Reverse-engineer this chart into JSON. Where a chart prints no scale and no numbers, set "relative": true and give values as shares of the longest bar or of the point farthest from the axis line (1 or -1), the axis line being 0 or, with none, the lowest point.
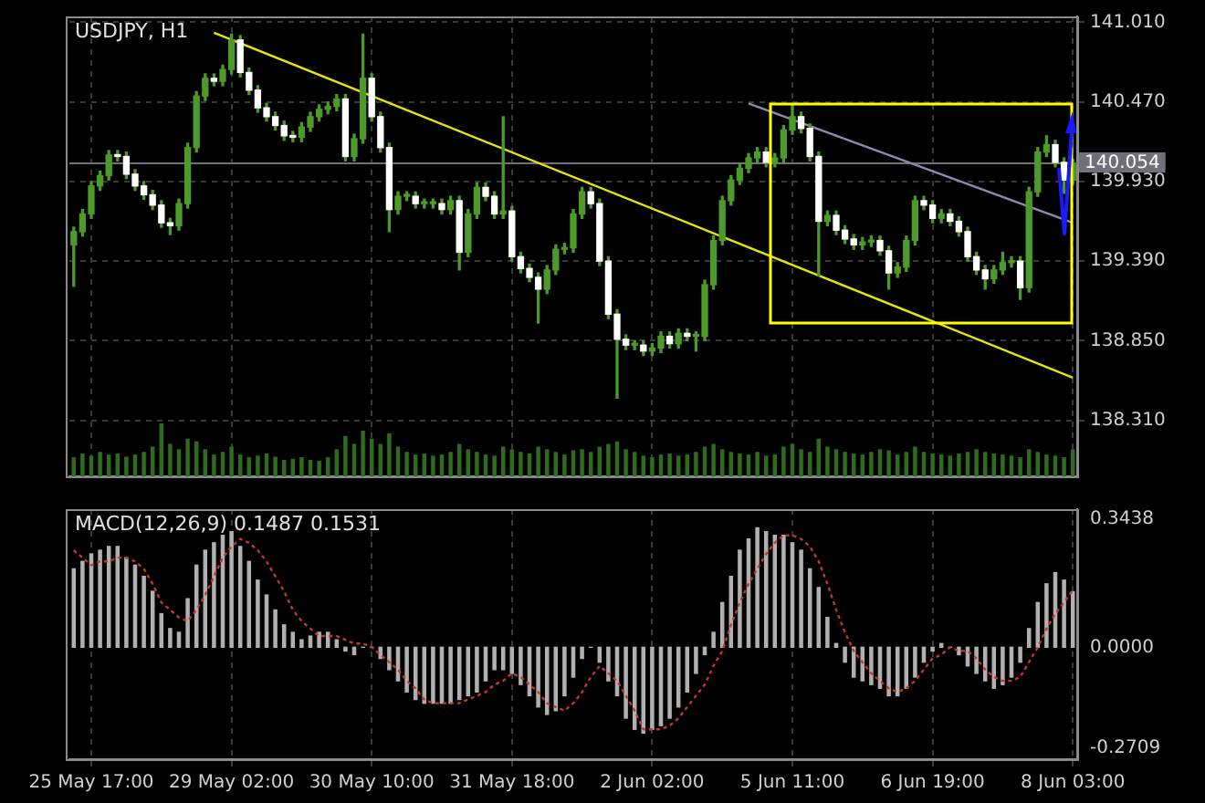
{
  "chart_data": [
    {
      "type": "candlestick",
      "title": "USDJPY, H1",
      "color": "#4c9a2a",
      "colors": [
        "#4c9a2a",
        "#4c9a2a",
        "#4c9a2a",
        "#4c9a2a",
        "#4c9a2a",
        "#ffffff",
        "#ffffff",
        "#ffffff",
        "#ffffff",
        "#ffffff",
        "#ffffff",
        "#ffffff",
        "#4c9a2a",
        "#4c9a2a",
        "#4c9a2a",
        "#4c9a2a",
        "#ffffff",
        "#4c9a2a",
        "#4c9a2a",
        "#ffffff",
        "#ffffff",
        "#ffffff",
        "#ffffff",
        "#ffffff",
        "#ffffff",
        "#ffffff",
        "#4c9a2a",
        "#4c9a2a",
        "#4c9a2a",
        "#4c9a2a",
        "#4c9a2a",
        "#ffffff",
        "#4c9a2a",
        "#4c9a2a",
        "#ffffff",
        "#ffffff",
        "#ffffff",
        "#4c9a2a",
        "#4c9a2a",
        "#ffffff",
        "#4c9a2a",
        "#4c9a2a",
        "#ffffff",
        "#4c9a2a",
        "#ffffff",
        "#4c9a2a",
        "#4c9a2a",
        "#ffffff",
        "#ffffff",
        "#4c9a2a",
        "#ffffff",
        "#ffffff",
        "#ffffff",
        "#ffffff",
        "#4c9a2a",
        "#4c9a2a",
        "#4c9a2a",
        "#4c9a2a",
        "#4c9a2a",
        "#ffffff",
        "#ffffff",
        "#ffffff",
        "#ffffff",
        "#ffffff",
        "#4c9a2a",
        "#ffffff",
        "#4c9a2a",
        "#4c9a2a",
        "#ffffff",
        "#4c9a2a",
        "#ffffff",
        "#4c9a2a",
        "#4c9a2a",
        "#4c9a2a",
        "#4c9a2a",
        "#4c9a2a",
        "#4c9a2a",
        "#4c9a2a",
        "#4c9a2a",
        "#ffffff",
        "#4c9a2a",
        "#4c9a2a",
        "#4c9a2a",
        "#ffffff",
        "#ffffff",
        "#ffffff",
        "#4c9a2a",
        "#ffffff",
        "#ffffff",
        "#ffffff",
        "#4c9a2a",
        "#4c9a2a",
        "#ffffff",
        "#ffffff",
        "#4c9a2a",
        "#4c9a2a",
        "#4c9a2a",
        "#ffffff",
        "#ffffff",
        "#4c9a2a",
        "#ffffff",
        "#ffffff",
        "#ffffff",
        "#ffffff",
        "#ffffff",
        "#4c9a2a",
        "#4c9a2a",
        "#4c9a2a",
        "#ffffff",
        "#4c9a2a",
        "#4c9a2a",
        "#4c9a2a",
        "#ffffff",
        "#ffffff",
        "#4c9a2a"
      ],
      "categories": [
        null,
        null,
        null,
        null,
        null,
        null,
        null,
        null,
        null,
        null,
        null,
        null,
        null,
        null,
        null,
        null,
        null,
        null,
        null,
        null,
        null,
        null,
        null,
        null,
        null,
        null,
        null,
        null,
        null,
        null,
        null,
        null,
        null,
        null,
        null,
        null,
        null,
        null,
        null,
        null,
        null,
        null,
        null,
        null,
        null,
        null,
        null,
        null,
        null,
        null,
        null,
        null,
        null,
        null,
        null,
        null,
        null,
        null,
        null,
        null,
        null,
        null,
        null,
        null,
        null,
        null,
        null,
        null,
        null,
        null,
        null,
        null,
        null,
        null,
        null,
        null,
        null,
        null,
        null,
        null,
        null,
        null,
        null,
        null,
        null,
        null,
        null,
        null,
        null,
        null,
        null,
        null,
        null,
        null,
        null,
        null,
        null,
        null,
        null,
        null,
        null,
        null,
        null,
        null,
        null,
        null,
        null,
        null,
        null,
        null,
        null,
        null,
        null,
        null,
        null
      ],
      "ohlc": [
        [
          139.5,
          139.62,
          139.22,
          139.59
        ],
        [
          139.59,
          139.74,
          139.56,
          139.71
        ],
        [
          139.71,
          139.93,
          139.68,
          139.9
        ],
        [
          139.9,
          140.0,
          139.87,
          139.97
        ],
        [
          139.97,
          140.14,
          139.94,
          140.11
        ],
        [
          140.11,
          140.14,
          140.07,
          140.1
        ],
        [
          140.1,
          140.13,
          139.95,
          139.98
        ],
        [
          139.98,
          140.01,
          139.87,
          139.9
        ],
        [
          139.9,
          139.93,
          139.81,
          139.84
        ],
        [
          139.84,
          139.87,
          139.74,
          139.77
        ],
        [
          139.77,
          139.8,
          139.62,
          139.65
        ],
        [
          139.65,
          139.68,
          139.57,
          139.63
        ],
        [
          139.63,
          139.81,
          139.6,
          139.78
        ],
        [
          139.78,
          140.19,
          139.75,
          140.16
        ],
        [
          140.16,
          140.54,
          140.13,
          140.51
        ],
        [
          140.51,
          140.66,
          140.48,
          140.63
        ],
        [
          140.63,
          140.66,
          140.58,
          140.61
        ],
        [
          140.61,
          140.72,
          140.58,
          140.69
        ],
        [
          140.69,
          140.93,
          140.66,
          140.89
        ],
        [
          140.89,
          140.92,
          140.64,
          140.67
        ],
        [
          140.67,
          140.7,
          140.52,
          140.55
        ],
        [
          140.55,
          140.58,
          140.4,
          140.43
        ],
        [
          140.43,
          140.46,
          140.34,
          140.37
        ],
        [
          140.37,
          140.4,
          140.28,
          140.31
        ],
        [
          140.31,
          140.34,
          140.21,
          140.24
        ],
        [
          140.24,
          140.27,
          140.2,
          140.23
        ],
        [
          140.23,
          140.33,
          140.2,
          140.3
        ],
        [
          140.3,
          140.4,
          140.27,
          140.37
        ],
        [
          140.37,
          140.45,
          140.34,
          140.42
        ],
        [
          140.42,
          140.47,
          140.39,
          140.44
        ],
        [
          140.44,
          140.52,
          140.41,
          140.49
        ],
        [
          140.49,
          140.52,
          140.07,
          140.1
        ],
        [
          140.1,
          140.25,
          140.07,
          140.22
        ],
        [
          140.22,
          140.93,
          140.19,
          140.63
        ],
        [
          140.63,
          140.66,
          140.34,
          140.37
        ],
        [
          140.37,
          140.4,
          140.13,
          140.16
        ],
        [
          140.16,
          140.19,
          139.59,
          139.74
        ],
        [
          139.74,
          139.86,
          139.71,
          139.83
        ],
        [
          139.83,
          139.86,
          139.8,
          139.83
        ],
        [
          139.83,
          139.86,
          139.75,
          139.78
        ],
        [
          139.78,
          139.81,
          139.75,
          139.78
        ],
        [
          139.78,
          139.81,
          139.75,
          139.78
        ],
        [
          139.78,
          139.81,
          139.71,
          139.74
        ],
        [
          139.74,
          139.83,
          139.71,
          139.8
        ],
        [
          139.8,
          139.83,
          139.33,
          139.45
        ],
        [
          139.45,
          139.74,
          139.42,
          139.71
        ],
        [
          139.71,
          139.92,
          139.68,
          139.89
        ],
        [
          139.89,
          139.92,
          139.8,
          139.83
        ],
        [
          139.83,
          139.86,
          139.68,
          139.71
        ],
        [
          139.71,
          140.37,
          139.68,
          139.73
        ],
        [
          139.73,
          139.76,
          139.39,
          139.42
        ],
        [
          139.42,
          139.45,
          139.31,
          139.34
        ],
        [
          139.34,
          139.37,
          139.25,
          139.28
        ],
        [
          139.28,
          139.31,
          138.97,
          139.2
        ],
        [
          139.2,
          139.36,
          139.17,
          139.33
        ],
        [
          139.33,
          139.5,
          139.3,
          139.47
        ],
        [
          139.47,
          139.51,
          139.44,
          139.48
        ],
        [
          139.48,
          139.74,
          139.45,
          139.71
        ],
        [
          139.71,
          139.89,
          139.68,
          139.86
        ],
        [
          139.86,
          139.89,
          139.75,
          139.78
        ],
        [
          139.78,
          139.81,
          139.36,
          139.39
        ],
        [
          139.39,
          139.42,
          139.0,
          139.03
        ],
        [
          139.03,
          139.06,
          138.46,
          138.86
        ],
        [
          138.86,
          138.89,
          138.79,
          138.82
        ],
        [
          138.82,
          138.85,
          138.79,
          138.82
        ],
        [
          138.82,
          138.85,
          138.75,
          138.78
        ],
        [
          138.78,
          138.83,
          138.75,
          138.8
        ],
        [
          138.8,
          138.91,
          138.77,
          138.88
        ],
        [
          138.88,
          138.91,
          138.8,
          138.83
        ],
        [
          138.83,
          138.93,
          138.8,
          138.9
        ],
        [
          138.9,
          138.93,
          138.85,
          138.88
        ],
        [
          138.88,
          138.91,
          138.78,
          138.88
        ],
        [
          138.88,
          139.26,
          138.85,
          139.23
        ],
        [
          139.23,
          139.56,
          139.2,
          139.53
        ],
        [
          139.53,
          139.83,
          139.5,
          139.8
        ],
        [
          139.8,
          139.97,
          139.77,
          139.94
        ],
        [
          139.94,
          140.05,
          139.91,
          140.02
        ],
        [
          140.02,
          140.12,
          139.99,
          140.09
        ],
        [
          140.09,
          140.16,
          140.06,
          140.13
        ],
        [
          140.13,
          140.16,
          140.03,
          140.06
        ],
        [
          140.06,
          140.12,
          140.03,
          140.09
        ],
        [
          140.09,
          140.31,
          140.06,
          140.28
        ],
        [
          140.28,
          140.45,
          140.25,
          140.37
        ],
        [
          140.37,
          140.4,
          140.26,
          140.29
        ],
        [
          140.29,
          140.32,
          140.07,
          140.1
        ],
        [
          140.1,
          140.13,
          139.29,
          139.66
        ],
        [
          139.66,
          139.73,
          139.63,
          139.7
        ],
        [
          139.7,
          139.73,
          139.57,
          139.6
        ],
        [
          139.6,
          139.63,
          139.51,
          139.54
        ],
        [
          139.54,
          139.57,
          139.47,
          139.5
        ],
        [
          139.5,
          139.55,
          139.47,
          139.52
        ],
        [
          139.52,
          139.56,
          139.49,
          139.53
        ],
        [
          139.53,
          139.56,
          139.43,
          139.46
        ],
        [
          139.46,
          139.49,
          139.2,
          139.31
        ],
        [
          139.31,
          139.38,
          139.28,
          139.35
        ],
        [
          139.35,
          139.56,
          139.32,
          139.53
        ],
        [
          139.53,
          139.83,
          139.5,
          139.8
        ],
        [
          139.8,
          139.83,
          139.74,
          139.77
        ],
        [
          139.77,
          139.8,
          139.65,
          139.68
        ],
        [
          139.68,
          139.74,
          139.65,
          139.71
        ],
        [
          139.71,
          139.74,
          139.63,
          139.66
        ],
        [
          139.66,
          139.69,
          139.56,
          139.59
        ],
        [
          139.59,
          139.62,
          139.39,
          139.42
        ],
        [
          139.42,
          139.45,
          139.3,
          139.33
        ],
        [
          139.33,
          139.36,
          139.2,
          139.27
        ],
        [
          139.27,
          139.36,
          139.24,
          139.33
        ],
        [
          139.33,
          139.45,
          139.3,
          139.38
        ],
        [
          139.38,
          139.42,
          139.35,
          139.39
        ],
        [
          139.39,
          139.42,
          139.13,
          139.21
        ],
        [
          139.21,
          139.89,
          139.18,
          139.86
        ],
        [
          139.86,
          140.16,
          139.83,
          140.13
        ],
        [
          140.13,
          140.24,
          140.1,
          140.18
        ],
        [
          140.18,
          140.21,
          140.03,
          140.06
        ],
        [
          140.06,
          140.09,
          139.85,
          139.94
        ],
        [
          139.94,
          140.08,
          139.91,
          140.05
        ]
      ],
      "series": [
        {
          "type": "line",
          "color": "#e6e600",
          "values": [
            null,
            null,
            null,
            null,
            null,
            null,
            null,
            null,
            null,
            null,
            null,
            null,
            null,
            null,
            null,
            null,
            140.94,
            null,
            null,
            null,
            null,
            null,
            null,
            null,
            null,
            null,
            null,
            null,
            null,
            null,
            null,
            null,
            null,
            null,
            null,
            null,
            null,
            null,
            null,
            null,
            null,
            null,
            null,
            null,
            null,
            null,
            null,
            null,
            null,
            null,
            null,
            null,
            null,
            null,
            null,
            null,
            null,
            null,
            null,
            null,
            null,
            null,
            null,
            null,
            null,
            null,
            null,
            null,
            null,
            null,
            null,
            null,
            null,
            null,
            null,
            null,
            null,
            null,
            null,
            null,
            null,
            null,
            null,
            null,
            null,
            null,
            null,
            null,
            null,
            null,
            null,
            null,
            null,
            null,
            null,
            null,
            null,
            null,
            null,
            null,
            null,
            null,
            null,
            null,
            null,
            null,
            null,
            null,
            null,
            null,
            null,
            null,
            null,
            null,
            138.6
          ]
        },
        {
          "type": "line",
          "color": "#8c8cb0",
          "values": [
            null,
            null,
            null,
            null,
            null,
            null,
            null,
            null,
            null,
            null,
            null,
            null,
            null,
            null,
            null,
            null,
            null,
            null,
            null,
            null,
            null,
            null,
            null,
            null,
            null,
            null,
            null,
            null,
            null,
            null,
            null,
            null,
            null,
            null,
            null,
            null,
            null,
            null,
            null,
            null,
            null,
            null,
            null,
            null,
            null,
            null,
            null,
            null,
            null,
            null,
            null,
            null,
            null,
            null,
            null,
            null,
            null,
            null,
            null,
            null,
            null,
            null,
            null,
            null,
            null,
            null,
            null,
            null,
            null,
            null,
            null,
            null,
            null,
            null,
            null,
            null,
            null,
            140.46,
            null,
            null,
            null,
            null,
            null,
            null,
            null,
            null,
            null,
            null,
            null,
            null,
            null,
            null,
            null,
            null,
            null,
            null,
            null,
            null,
            null,
            null,
            null,
            null,
            null,
            null,
            null,
            null,
            null,
            null,
            null,
            null,
            null,
            null,
            null,
            null,
            139.65
          ]
        }
      ],
      "ylim": [
        137.93,
        141.05
      ],
      "yticks": [
        {
          "value": 138.31,
          "label": "138.310"
        },
        {
          "value": 138.85,
          "label": "138.850"
        },
        {
          "value": 139.39,
          "label": "139.390"
        },
        {
          "value": 139.93,
          "label": "139.930"
        },
        {
          "value": 140.47,
          "label": "140.470"
        },
        {
          "value": 141.01,
          "label": "141.010"
        }
      ],
      "ref_lines": [
        {
          "axis": "y",
          "value": 140.054,
          "label": "140.054",
          "color": "#70707a"
        }
      ],
      "grid": true,
      "tick_labels": "y",
      "legend": false
    },
    {
      "type": "bar",
      "relative": true,
      "color": "#2f6b1f",
      "categories": [
        null,
        null,
        null,
        null,
        null,
        null,
        null,
        null,
        null,
        null,
        null,
        null,
        null,
        null,
        null,
        null,
        null,
        null,
        null,
        null,
        null,
        null,
        null,
        null,
        null,
        null,
        null,
        null,
        null,
        null,
        null,
        null,
        null,
        null,
        null,
        null,
        null,
        null,
        null,
        null,
        null,
        null,
        null,
        null,
        null,
        null,
        null,
        null,
        null,
        null,
        null,
        null,
        null,
        null,
        null,
        null,
        null,
        null,
        null,
        null,
        null,
        null,
        null,
        null,
        null,
        null,
        null,
        null,
        null,
        null,
        null,
        null,
        null,
        null,
        null,
        null,
        null,
        null,
        null,
        null,
        null,
        null,
        null,
        null,
        null,
        null,
        null,
        null,
        null,
        null,
        null,
        null,
        null,
        null,
        null,
        null,
        null,
        null,
        null,
        null,
        null,
        null,
        null,
        null,
        null,
        null,
        null,
        null,
        null,
        null,
        null,
        null,
        null,
        null,
        null
      ],
      "values": [
        0.35,
        0.42,
        0.38,
        0.45,
        0.4,
        0.42,
        0.36,
        0.4,
        0.45,
        0.55,
        1,
        0.6,
        0.5,
        0.7,
        0.65,
        0.5,
        0.4,
        0.45,
        0.55,
        0.4,
        0.35,
        0.38,
        0.42,
        0.36,
        0.3,
        0.32,
        0.35,
        0.3,
        0.28,
        0.35,
        0.5,
        0.75,
        0.6,
        0.85,
        0.7,
        0.6,
        0.8,
        0.55,
        0.45,
        0.4,
        0.42,
        0.38,
        0.4,
        0.45,
        0.6,
        0.5,
        0.45,
        0.4,
        0.38,
        0.55,
        0.5,
        0.45,
        0.42,
        0.55,
        0.5,
        0.45,
        0.4,
        0.48,
        0.5,
        0.45,
        0.55,
        0.6,
        0.65,
        0.5,
        0.45,
        0.38,
        0.35,
        0.4,
        0.42,
        0.38,
        0.4,
        0.45,
        0.55,
        0.6,
        0.5,
        0.45,
        0.42,
        0.4,
        0.45,
        0.38,
        0.4,
        0.55,
        0.6,
        0.5,
        0.45,
        0.7,
        0.55,
        0.5,
        0.45,
        0.42,
        0.4,
        0.45,
        0.5,
        0.48,
        0.4,
        0.45,
        0.55,
        0.45,
        0.42,
        0.4,
        0.38,
        0.42,
        0.45,
        0.5,
        0.45,
        0.42,
        0.4,
        0.38,
        0.35,
        0.5,
        0.45,
        0.4,
        0.38,
        0.35,
        0.5
      ],
      "tick_labels": false,
      "legend": false
    },
    {
      "type": "bar",
      "title": "MACD(12,26,9) 0.1487 0.1531",
      "categories": [
        null,
        null,
        "25 May 17:00",
        null,
        null,
        null,
        null,
        null,
        null,
        null,
        null,
        null,
        null,
        null,
        null,
        null,
        null,
        null,
        "29 May 02:00",
        null,
        null,
        null,
        null,
        null,
        null,
        null,
        null,
        null,
        null,
        null,
        null,
        null,
        null,
        null,
        "30 May 10:00",
        null,
        null,
        null,
        null,
        null,
        null,
        null,
        null,
        null,
        null,
        null,
        null,
        null,
        null,
        null,
        "31 May 18:00",
        null,
        null,
        null,
        null,
        null,
        null,
        null,
        null,
        null,
        null,
        null,
        null,
        null,
        null,
        null,
        "2 Jun 02:00",
        null,
        null,
        null,
        null,
        null,
        null,
        null,
        null,
        null,
        null,
        null,
        null,
        null,
        null,
        null,
        "5 Jun 11:00",
        null,
        null,
        null,
        null,
        null,
        null,
        null,
        null,
        null,
        null,
        null,
        null,
        null,
        null,
        null,
        "6 Jun 19:00",
        null,
        null,
        null,
        null,
        null,
        null,
        null,
        null,
        null,
        null,
        null,
        null,
        null,
        null,
        null,
        "8 Jun 03:00"
      ],
      "series": [
        {
          "type": "bar",
          "color": "#b0b0b0",
          "values": [
            0.21,
            0.23,
            0.25,
            0.26,
            0.27,
            0.27,
            0.24,
            0.22,
            0.19,
            0.15,
            0.09,
            0.05,
            0.04,
            0.13,
            0.22,
            0.26,
            0.28,
            0.3,
            0.31,
            0.27,
            0.23,
            0.18,
            0.14,
            0.1,
            0.06,
            0.04,
            0.02,
            0.03,
            0.04,
            0.04,
            0.02,
            -0.01,
            -0.02,
            0,
            0,
            -0.03,
            -0.06,
            -0.09,
            -0.12,
            -0.14,
            -0.15,
            -0.15,
            -0.15,
            -0.15,
            -0.14,
            -0.13,
            -0.12,
            -0.09,
            -0.06,
            -0.06,
            -0.07,
            -0.1,
            -0.13,
            -0.16,
            -0.18,
            -0.17,
            -0.13,
            -0.08,
            -0.03,
            0,
            -0.04,
            -0.09,
            -0.13,
            -0.19,
            -0.22,
            -0.23,
            -0.22,
            -0.21,
            -0.19,
            -0.16,
            -0.12,
            -0.07,
            -0.02,
            0.04,
            0.12,
            0.19,
            0.26,
            0.29,
            0.32,
            0.31,
            0.3,
            0.3,
            0.28,
            0.26,
            0.21,
            0.16,
            0.08,
            0.01,
            -0.04,
            -0.08,
            -0.09,
            -0.1,
            -0.11,
            -0.13,
            -0.13,
            -0.11,
            -0.08,
            -0.04,
            -0.01,
            0.01,
            0,
            -0.02,
            -0.05,
            -0.07,
            -0.09,
            -0.11,
            -0.1,
            -0.08,
            -0.04,
            0.05,
            0.12,
            0.17,
            0.2,
            0.18,
            0.1487
          ]
        },
        {
          "type": "line",
          "color": "#c0392b",
          "line_style": "dotted",
          "values": [
            0.26,
            0.24,
            0.22,
            0.23,
            0.23,
            0.24,
            0.24,
            0.23,
            0.21,
            0.17,
            0.12,
            0.1,
            0.08,
            0.07,
            0.1,
            0.14,
            0.19,
            0.24,
            0.27,
            0.29,
            0.28,
            0.26,
            0.23,
            0.19,
            0.15,
            0.1,
            0.07,
            0.05,
            0.03,
            0.03,
            0.03,
            0.02,
            0.01,
            0.01,
            0,
            -0.02,
            -0.04,
            -0.06,
            -0.09,
            -0.11,
            -0.14,
            -0.15,
            -0.15,
            -0.15,
            -0.15,
            -0.14,
            -0.13,
            -0.12,
            -0.1,
            -0.09,
            -0.07,
            -0.08,
            -0.1,
            -0.12,
            -0.15,
            -0.16,
            -0.17,
            -0.15,
            -0.12,
            -0.08,
            -0.05,
            -0.07,
            -0.09,
            -0.13,
            -0.17,
            -0.22,
            -0.22,
            -0.22,
            -0.21,
            -0.19,
            -0.16,
            -0.13,
            -0.1,
            -0.05,
            -0.01,
            0.06,
            0.12,
            0.17,
            0.21,
            0.25,
            0.28,
            0.3,
            0.3,
            0.29,
            0.27,
            0.23,
            0.17,
            0.1,
            0.04,
            -0.01,
            -0.04,
            -0.07,
            -0.09,
            -0.11,
            -0.12,
            -0.11,
            -0.09,
            -0.06,
            -0.03,
            -0.02,
            0,
            -0.01,
            -0.01,
            -0.03,
            -0.06,
            -0.08,
            -0.09,
            -0.09,
            -0.08,
            -0.04,
            0,
            0.05,
            0.09,
            0.12,
            0.1531
          ]
        }
      ],
      "ylim": [
        -0.3,
        0.37
      ],
      "yticks": [
        {
          "value": -0.2709,
          "label": "-0.2709"
        },
        {
          "value": 0,
          "label": "0.0000"
        },
        {
          "value": 0.3438,
          "label": "0.3438"
        }
      ],
      "grid": "x",
      "legend": false
    }
  ]
}
